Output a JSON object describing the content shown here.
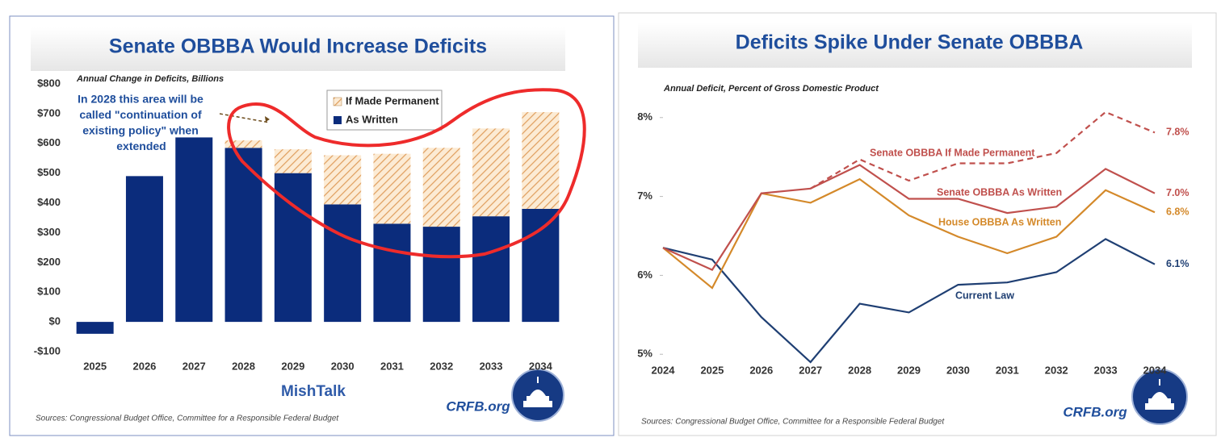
{
  "chart_data": [
    {
      "type": "bar",
      "title": "Senate OBBBA Would Increase Deficits",
      "subtitle": "Annual Change in Deficits, Billions",
      "categories": [
        "2025",
        "2026",
        "2027",
        "2028",
        "2029",
        "2030",
        "2031",
        "2032",
        "2033",
        "2034"
      ],
      "series": [
        {
          "name": "As Written",
          "color": "#0b2c7c",
          "values": [
            -40,
            490,
            620,
            585,
            500,
            395,
            330,
            320,
            355,
            380
          ]
        },
        {
          "name": "If Made Permanent",
          "color": "#e0a060",
          "values": [
            null,
            null,
            null,
            25,
            80,
            165,
            235,
            265,
            295,
            325
          ]
        }
      ],
      "stacked": true,
      "ylim": [
        -100,
        800
      ],
      "yticks": [
        {
          "value": -100,
          "label": "-$100"
        },
        {
          "value": 0,
          "label": "$0"
        },
        {
          "value": 100,
          "label": "$100"
        },
        {
          "value": 200,
          "label": "$200"
        },
        {
          "value": 300,
          "label": "$300"
        },
        {
          "value": 400,
          "label": "$400"
        },
        {
          "value": 500,
          "label": "$500"
        },
        {
          "value": 600,
          "label": "$600"
        },
        {
          "value": 700,
          "label": "$700"
        },
        {
          "value": 800,
          "label": "$800"
        }
      ],
      "annotation": [
        "In 2028 this area will be",
        "called \"continuation of",
        "existing policy\" when",
        "extended"
      ],
      "watermark": "MishTalk",
      "logo_text": "CRFB.org",
      "source": "Sources: Congressional Budget Office, Committee for a Responsible Federal Budget"
    },
    {
      "type": "line",
      "title": "Deficits Spike Under Senate OBBBA",
      "subtitle": "Annual Deficit, Percent of Gross Domestic Product",
      "categories": [
        "2024",
        "2025",
        "2026",
        "2027",
        "2028",
        "2029",
        "2030",
        "2031",
        "2032",
        "2033",
        "2034"
      ],
      "series": [
        {
          "name": "Current Law",
          "color": "#1f3f73",
          "values": [
            6.35,
            6.2,
            5.47,
            4.9,
            5.64,
            5.53,
            5.88,
            5.91,
            6.04,
            6.46,
            6.14
          ],
          "value_labels": [
            null,
            null,
            null,
            null,
            null,
            null,
            null,
            null,
            null,
            null,
            "6.1%"
          ]
        },
        {
          "name": "House OBBBA As Written",
          "color": "#d4892a",
          "values": [
            6.35,
            5.84,
            7.04,
            6.92,
            7.22,
            6.76,
            6.49,
            6.28,
            6.49,
            7.08,
            6.8
          ],
          "value_labels": [
            null,
            null,
            null,
            null,
            null,
            null,
            null,
            null,
            null,
            null,
            "6.8%"
          ]
        },
        {
          "name": "Senate OBBBA As Written",
          "color": "#c0504d",
          "values": [
            6.35,
            6.07,
            7.04,
            7.1,
            7.4,
            6.97,
            6.97,
            6.79,
            6.87,
            7.35,
            7.04
          ],
          "value_labels": [
            null,
            null,
            null,
            null,
            null,
            null,
            null,
            null,
            null,
            null,
            "7.0%"
          ]
        },
        {
          "name": "Senate OBBBA If Made Permanent",
          "color": "#c0504d",
          "dashed": true,
          "values": [
            null,
            null,
            null,
            7.1,
            7.47,
            7.2,
            7.42,
            7.42,
            7.55,
            8.07,
            7.81
          ],
          "value_labels": [
            null,
            null,
            null,
            null,
            null,
            null,
            null,
            null,
            null,
            null,
            "7.8%"
          ]
        }
      ],
      "ylim": [
        4.9,
        8.1
      ],
      "yticks": [
        {
          "value": 5,
          "label": "5%"
        },
        {
          "value": 6,
          "label": "6%"
        },
        {
          "value": 7,
          "label": "7%"
        },
        {
          "value": 8,
          "label": "8%"
        }
      ],
      "logo_text": "CRFB.org",
      "source": "Sources: Congressional Budget Office, Committee for a Responsible Federal Budget"
    }
  ]
}
